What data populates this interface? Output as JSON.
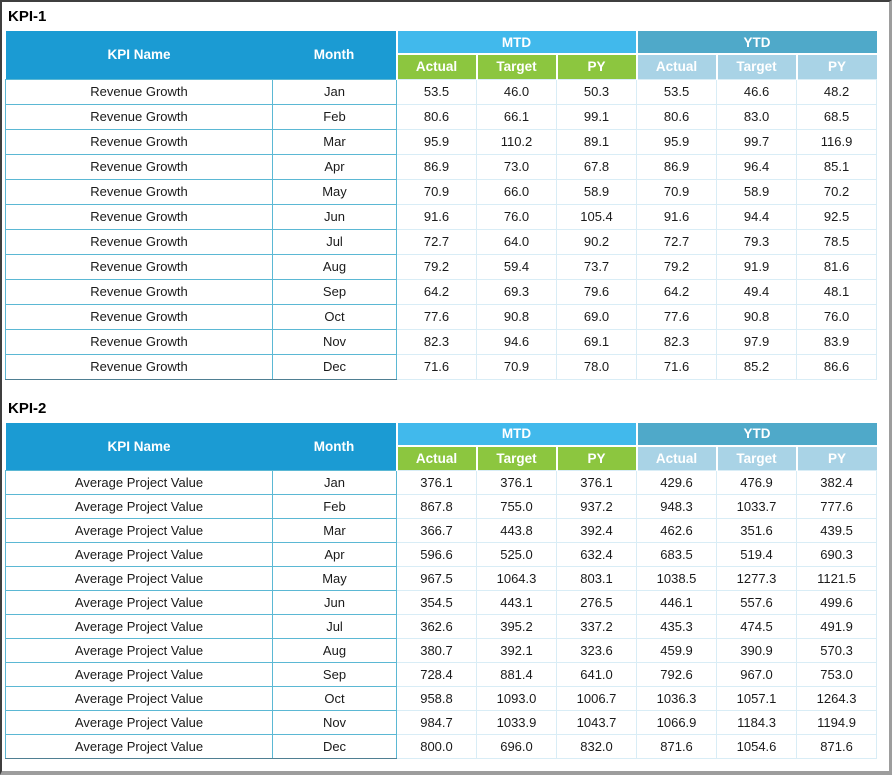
{
  "colors": {
    "header_blue": "#1b9bd3",
    "mtd_band_blue": "#41b9ec",
    "ytd_band_teal": "#4fa9c9",
    "mtd_subheader_green": "#8cc63f",
    "ytd_subheader_light_blue": "#a9d3e6",
    "cell_border_teal": "#5bb8d4",
    "cell_border_light": "#d9edf6"
  },
  "chart_data": [
    {
      "type": "table",
      "title": "KPI-1",
      "header": {
        "kpi_name": "KPI Name",
        "month": "Month",
        "groups": [
          "MTD",
          "YTD"
        ],
        "sub_columns": [
          "Actual",
          "Target",
          "PY"
        ]
      },
      "rows": [
        {
          "kpi": "Revenue Growth",
          "month": "Jan",
          "values": [
            "53.5",
            "46.0",
            "50.3",
            "53.5",
            "46.6",
            "48.2"
          ]
        },
        {
          "kpi": "Revenue Growth",
          "month": "Feb",
          "values": [
            "80.6",
            "66.1",
            "99.1",
            "80.6",
            "83.0",
            "68.5"
          ]
        },
        {
          "kpi": "Revenue Growth",
          "month": "Mar",
          "values": [
            "95.9",
            "110.2",
            "89.1",
            "95.9",
            "99.7",
            "116.9"
          ]
        },
        {
          "kpi": "Revenue Growth",
          "month": "Apr",
          "values": [
            "86.9",
            "73.0",
            "67.8",
            "86.9",
            "96.4",
            "85.1"
          ]
        },
        {
          "kpi": "Revenue Growth",
          "month": "May",
          "values": [
            "70.9",
            "66.0",
            "58.9",
            "70.9",
            "58.9",
            "70.2"
          ]
        },
        {
          "kpi": "Revenue Growth",
          "month": "Jun",
          "values": [
            "91.6",
            "76.0",
            "105.4",
            "91.6",
            "94.4",
            "92.5"
          ]
        },
        {
          "kpi": "Revenue Growth",
          "month": "Jul",
          "values": [
            "72.7",
            "64.0",
            "90.2",
            "72.7",
            "79.3",
            "78.5"
          ]
        },
        {
          "kpi": "Revenue Growth",
          "month": "Aug",
          "values": [
            "79.2",
            "59.4",
            "73.7",
            "79.2",
            "91.9",
            "81.6"
          ]
        },
        {
          "kpi": "Revenue Growth",
          "month": "Sep",
          "values": [
            "64.2",
            "69.3",
            "79.6",
            "64.2",
            "49.4",
            "48.1"
          ]
        },
        {
          "kpi": "Revenue Growth",
          "month": "Oct",
          "values": [
            "77.6",
            "90.8",
            "69.0",
            "77.6",
            "90.8",
            "76.0"
          ]
        },
        {
          "kpi": "Revenue Growth",
          "month": "Nov",
          "values": [
            "82.3",
            "94.6",
            "69.1",
            "82.3",
            "97.9",
            "83.9"
          ]
        },
        {
          "kpi": "Revenue Growth",
          "month": "Dec",
          "values": [
            "71.6",
            "70.9",
            "78.0",
            "71.6",
            "85.2",
            "86.6"
          ]
        }
      ]
    },
    {
      "type": "table",
      "title": "KPI-2",
      "header": {
        "kpi_name": "KPI Name",
        "month": "Month",
        "groups": [
          "MTD",
          "YTD"
        ],
        "sub_columns": [
          "Actual",
          "Target",
          "PY"
        ]
      },
      "rows": [
        {
          "kpi": "Average Project Value",
          "month": "Jan",
          "values": [
            "376.1",
            "376.1",
            "376.1",
            "429.6",
            "476.9",
            "382.4"
          ]
        },
        {
          "kpi": "Average Project Value",
          "month": "Feb",
          "values": [
            "867.8",
            "755.0",
            "937.2",
            "948.3",
            "1033.7",
            "777.6"
          ]
        },
        {
          "kpi": "Average Project Value",
          "month": "Mar",
          "values": [
            "366.7",
            "443.8",
            "392.4",
            "462.6",
            "351.6",
            "439.5"
          ]
        },
        {
          "kpi": "Average Project Value",
          "month": "Apr",
          "values": [
            "596.6",
            "525.0",
            "632.4",
            "683.5",
            "519.4",
            "690.3"
          ]
        },
        {
          "kpi": "Average Project Value",
          "month": "May",
          "values": [
            "967.5",
            "1064.3",
            "803.1",
            "1038.5",
            "1277.3",
            "1121.5"
          ]
        },
        {
          "kpi": "Average Project Value",
          "month": "Jun",
          "values": [
            "354.5",
            "443.1",
            "276.5",
            "446.1",
            "557.6",
            "499.6"
          ]
        },
        {
          "kpi": "Average Project Value",
          "month": "Jul",
          "values": [
            "362.6",
            "395.2",
            "337.2",
            "435.3",
            "474.5",
            "491.9"
          ]
        },
        {
          "kpi": "Average Project Value",
          "month": "Aug",
          "values": [
            "380.7",
            "392.1",
            "323.6",
            "459.9",
            "390.9",
            "570.3"
          ]
        },
        {
          "kpi": "Average Project Value",
          "month": "Sep",
          "values": [
            "728.4",
            "881.4",
            "641.0",
            "792.6",
            "967.0",
            "753.0"
          ]
        },
        {
          "kpi": "Average Project Value",
          "month": "Oct",
          "values": [
            "958.8",
            "1093.0",
            "1006.7",
            "1036.3",
            "1057.1",
            "1264.3"
          ]
        },
        {
          "kpi": "Average Project Value",
          "month": "Nov",
          "values": [
            "984.7",
            "1033.9",
            "1043.7",
            "1066.9",
            "1184.3",
            "1194.9"
          ]
        },
        {
          "kpi": "Average Project Value",
          "month": "Dec",
          "values": [
            "800.0",
            "696.0",
            "832.0",
            "871.6",
            "1054.6",
            "871.6"
          ]
        }
      ]
    }
  ]
}
